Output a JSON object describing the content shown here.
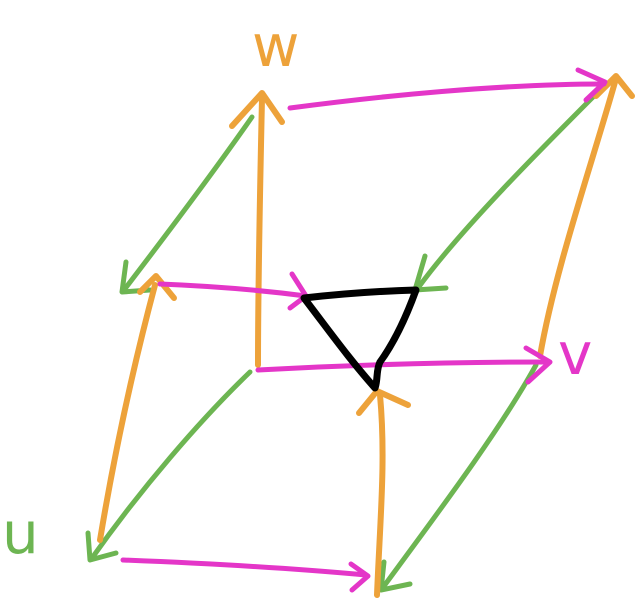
{
  "labels": {
    "u": "u",
    "v": "v",
    "w": "w"
  },
  "colors": {
    "u_axis": "#6db552",
    "v_axis": "#e436c8",
    "w_axis": "#eda23a",
    "triangle": "#000000",
    "background": "#ffffff"
  }
}
